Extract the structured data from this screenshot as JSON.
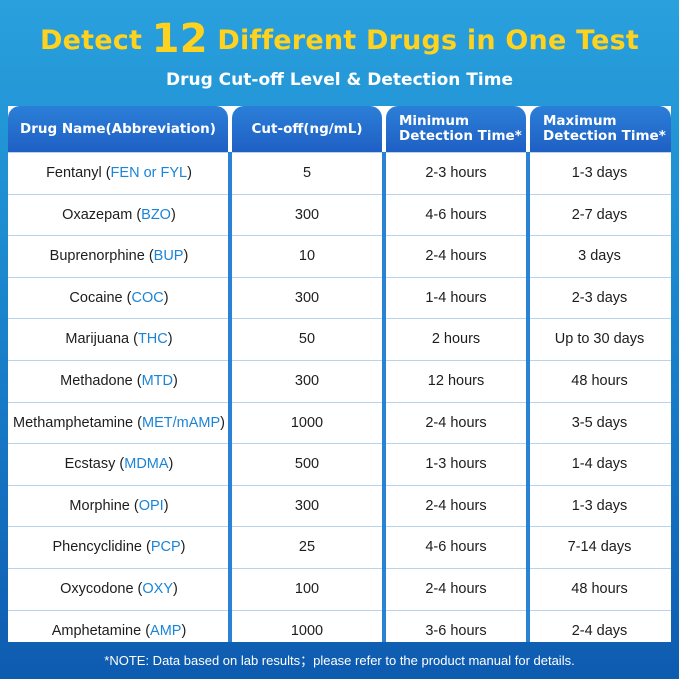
{
  "headline": {
    "prefix": "Detect ",
    "number": "12",
    "suffix": " Different Drugs in One Test"
  },
  "subtitle": "Drug Cut-off Level & Detection Time",
  "columns": [
    "Drug Name(Abbreviation)",
    "Cut-off(ng/mL)",
    "Minimum\nDetection Time*",
    "Maximum\nDetection Time*"
  ],
  "rows": [
    {
      "name": "Fentanyl",
      "abbr": "FEN or FYL",
      "cutoff": "5",
      "min": "2-3 hours",
      "max": "1-3 days"
    },
    {
      "name": "Oxazepam",
      "abbr": "BZO",
      "cutoff": "300",
      "min": "4-6 hours",
      "max": "2-7 days"
    },
    {
      "name": "Buprenorphine",
      "abbr": "BUP",
      "cutoff": "10",
      "min": "2-4 hours",
      "max": "3 days"
    },
    {
      "name": "Cocaine",
      "abbr": "COC",
      "cutoff": "300",
      "min": "1-4 hours",
      "max": "2-3 days"
    },
    {
      "name": "Marijuana",
      "abbr": "THC",
      "cutoff": "50",
      "min": "2 hours",
      "max": "Up to 30 days"
    },
    {
      "name": "Methadone",
      "abbr": "MTD",
      "cutoff": "300",
      "min": "12 hours",
      "max": "48 hours"
    },
    {
      "name": "Methamphetamine",
      "abbr": "MET/mAMP",
      "cutoff": "1000",
      "min": "2-4 hours",
      "max": "3-5 days"
    },
    {
      "name": "Ecstasy",
      "abbr": "MDMA",
      "cutoff": "500",
      "min": "1-3 hours",
      "max": "1-4 days"
    },
    {
      "name": "Morphine",
      "abbr": "OPI",
      "cutoff": "300",
      "min": "2-4 hours",
      "max": "1-3 days"
    },
    {
      "name": "Phencyclidine",
      "abbr": "PCP",
      "cutoff": "25",
      "min": "4-6 hours",
      "max": "7-14 days"
    },
    {
      "name": "Oxycodone",
      "abbr": "OXY",
      "cutoff": "100",
      "min": "2-4 hours",
      "max": "48 hours"
    },
    {
      "name": "Amphetamine",
      "abbr": "AMP",
      "cutoff": "1000",
      "min": "3-6 hours",
      "max": "2-4 days"
    }
  ],
  "note": "*NOTE: Data based on lab results；please refer to the product manual for details.",
  "colors": {
    "headline": "#ffd21f",
    "abbreviation": "#1a84d8",
    "header": "#1f5fc4",
    "divider": "#2a82d6"
  }
}
